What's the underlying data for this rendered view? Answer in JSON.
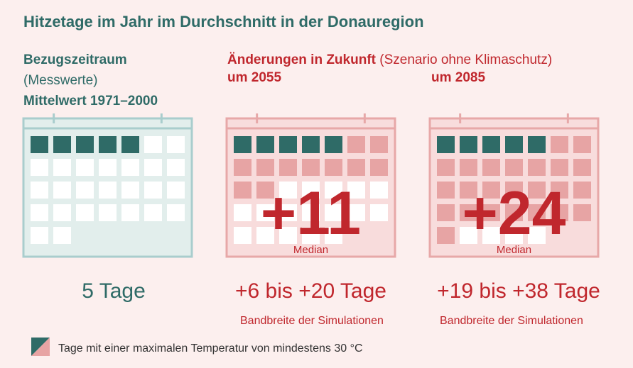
{
  "title": "Hitzetage im Jahr im Durchschnitt in der Donauregion",
  "reference": {
    "heading": "Bezugszeitraum",
    "sub": "(Messwerte)",
    "period": "Mittelwert 1971–2000",
    "value_label": "5 Tage"
  },
  "future": {
    "heading": "Änderungen in Zukunft",
    "scenario": "(Szenario ohne Klimaschutz)",
    "periods": [
      {
        "label": "um 2055",
        "median_label": "+11",
        "median_caption": "Median",
        "range_label": "+6 bis +20 Tage",
        "band_caption": "Bandbreite der Simulationen"
      },
      {
        "label": "um 2085",
        "median_label": "+24",
        "median_caption": "Median",
        "range_label": "+19 bis +38 Tage",
        "band_caption": "Bandbreite der Simulationen"
      }
    ]
  },
  "legend": {
    "label": "Tage mit einer maximalen Temperatur von mindestens 30 °C"
  },
  "colors": {
    "teal": "#2f6b67",
    "red": "#c0272d",
    "pink_cell": "#e7a4a4",
    "ref_frame": "#a9cdcd",
    "ref_bg": "#e2eeec",
    "fut_frame": "#e7a8a8",
    "fut_bg": "#f8dcdc",
    "background": "#fcefee"
  },
  "chart_data": {
    "type": "pictogram",
    "unit": "Tage",
    "series": [
      {
        "name": "Bezugszeitraum Mittelwert 1971–2000",
        "baseline_days": 5,
        "change_median": 0
      },
      {
        "name": "um 2055",
        "baseline_days": 5,
        "change_median": 11,
        "range": [
          6,
          20
        ]
      },
      {
        "name": "um 2085",
        "baseline_days": 5,
        "change_median": 24,
        "range": [
          19,
          38
        ]
      }
    ]
  }
}
